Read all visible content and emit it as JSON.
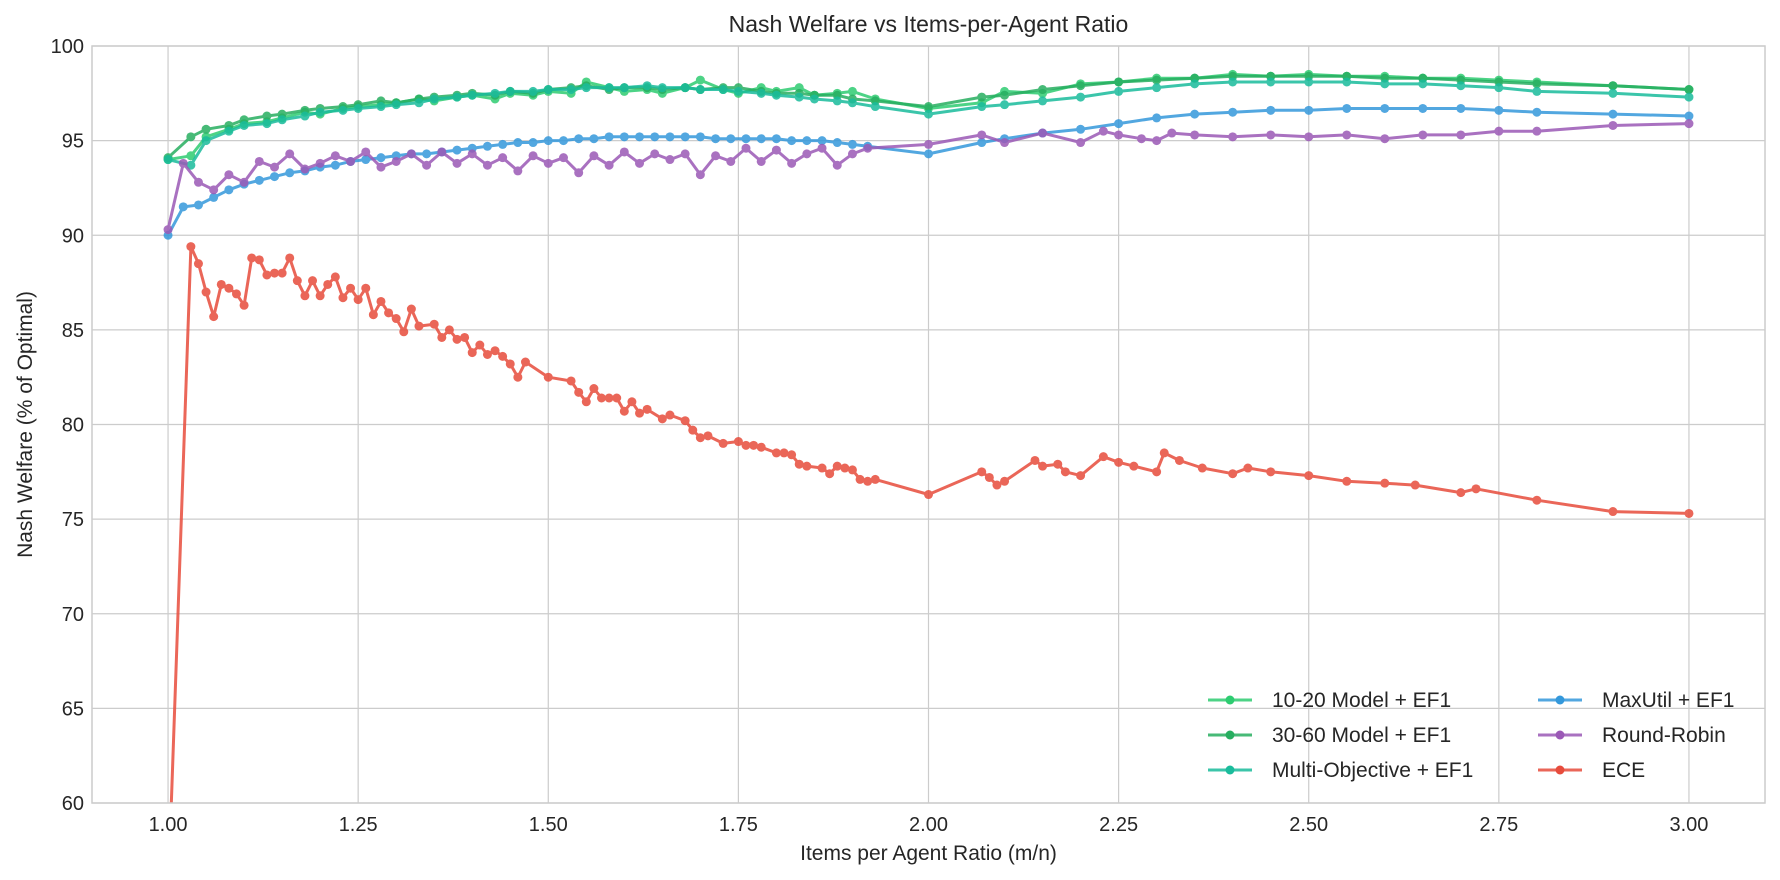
{
  "chart_data": {
    "type": "line",
    "title": "Nash Welfare vs Items-per-Agent Ratio",
    "xlabel": "Items per Agent Ratio (m/n)",
    "ylabel": "Nash Welfare (% of Optimal)",
    "xlim": [
      0.9,
      3.1
    ],
    "ylim": [
      60,
      100
    ],
    "xticks": [
      1.0,
      1.25,
      1.5,
      1.75,
      2.0,
      2.25,
      2.5,
      2.75,
      3.0
    ],
    "xtick_labels": [
      "1.00",
      "1.25",
      "1.50",
      "1.75",
      "2.00",
      "2.25",
      "2.50",
      "2.75",
      "3.00"
    ],
    "yticks": [
      60,
      65,
      70,
      75,
      80,
      85,
      90,
      95,
      100
    ],
    "ytick_labels": [
      "60",
      "65",
      "70",
      "75",
      "80",
      "85",
      "90",
      "95",
      "100"
    ],
    "grid": true,
    "legend_position": "lower-right",
    "series": [
      {
        "name": "10-20 Model + EF1",
        "color": "#2ecc71",
        "x": [
          1.0,
          1.03,
          1.05,
          1.08,
          1.1,
          1.13,
          1.15,
          1.18,
          1.2,
          1.23,
          1.25,
          1.28,
          1.3,
          1.33,
          1.35,
          1.38,
          1.4,
          1.43,
          1.45,
          1.48,
          1.5,
          1.53,
          1.55,
          1.58,
          1.6,
          1.63,
          1.65,
          1.68,
          1.7,
          1.73,
          1.75,
          1.78,
          1.8,
          1.83,
          1.85,
          1.88,
          1.9,
          1.93,
          2.0,
          2.07,
          2.1,
          2.15,
          2.2,
          2.25,
          2.3,
          2.35,
          2.4,
          2.45,
          2.5,
          2.55,
          2.6,
          2.65,
          2.7,
          2.75,
          2.8,
          2.9,
          3.0
        ],
        "y": [
          94.0,
          94.2,
          95.2,
          95.6,
          95.9,
          96.0,
          96.2,
          96.5,
          96.4,
          96.7,
          96.8,
          96.9,
          97.0,
          97.2,
          97.1,
          97.3,
          97.4,
          97.2,
          97.5,
          97.4,
          97.6,
          97.5,
          98.1,
          97.8,
          97.6,
          97.7,
          97.5,
          97.8,
          98.2,
          97.7,
          97.5,
          97.8,
          97.6,
          97.8,
          97.4,
          97.5,
          97.6,
          97.2,
          96.7,
          97.0,
          97.6,
          97.5,
          98.0,
          98.1,
          98.3,
          98.3,
          98.5,
          98.4,
          98.5,
          98.4,
          98.4,
          98.3,
          98.3,
          98.2,
          98.1,
          97.9,
          97.7
        ]
      },
      {
        "name": "30-60 Model + EF1",
        "color": "#27ae60",
        "x": [
          1.0,
          1.03,
          1.05,
          1.08,
          1.1,
          1.13,
          1.15,
          1.18,
          1.2,
          1.23,
          1.25,
          1.28,
          1.3,
          1.33,
          1.35,
          1.38,
          1.4,
          1.43,
          1.45,
          1.48,
          1.5,
          1.53,
          1.55,
          1.58,
          1.6,
          1.63,
          1.65,
          1.68,
          1.7,
          1.73,
          1.75,
          1.78,
          1.8,
          1.83,
          1.85,
          1.88,
          1.9,
          1.93,
          2.0,
          2.07,
          2.1,
          2.15,
          2.2,
          2.25,
          2.3,
          2.35,
          2.4,
          2.45,
          2.5,
          2.55,
          2.6,
          2.65,
          2.7,
          2.75,
          2.8,
          2.9,
          3.0
        ],
        "y": [
          94.1,
          95.2,
          95.6,
          95.8,
          96.1,
          96.3,
          96.4,
          96.6,
          96.7,
          96.8,
          96.9,
          97.1,
          97.0,
          97.2,
          97.3,
          97.4,
          97.5,
          97.4,
          97.6,
          97.5,
          97.7,
          97.8,
          97.9,
          97.7,
          97.8,
          97.8,
          97.7,
          97.8,
          97.7,
          97.8,
          97.8,
          97.6,
          97.5,
          97.5,
          97.4,
          97.4,
          97.2,
          97.1,
          96.8,
          97.3,
          97.4,
          97.7,
          97.9,
          98.1,
          98.2,
          98.3,
          98.4,
          98.4,
          98.4,
          98.4,
          98.3,
          98.3,
          98.2,
          98.1,
          98.0,
          97.9,
          97.7
        ]
      },
      {
        "name": "Multi-Objective + EF1",
        "color": "#1abc9c",
        "x": [
          1.0,
          1.03,
          1.05,
          1.08,
          1.1,
          1.13,
          1.15,
          1.18,
          1.2,
          1.23,
          1.25,
          1.28,
          1.3,
          1.33,
          1.35,
          1.38,
          1.4,
          1.43,
          1.45,
          1.48,
          1.5,
          1.53,
          1.55,
          1.58,
          1.6,
          1.63,
          1.65,
          1.68,
          1.7,
          1.73,
          1.75,
          1.78,
          1.8,
          1.83,
          1.85,
          1.88,
          1.9,
          1.93,
          2.0,
          2.07,
          2.1,
          2.15,
          2.2,
          2.25,
          2.3,
          2.35,
          2.4,
          2.45,
          2.5,
          2.55,
          2.6,
          2.65,
          2.7,
          2.75,
          2.8,
          2.9,
          3.0
        ],
        "y": [
          94.0,
          93.7,
          95.0,
          95.5,
          95.8,
          95.9,
          96.1,
          96.3,
          96.5,
          96.6,
          96.7,
          96.8,
          96.9,
          97.0,
          97.2,
          97.3,
          97.4,
          97.5,
          97.6,
          97.6,
          97.7,
          97.7,
          97.8,
          97.8,
          97.8,
          97.9,
          97.8,
          97.8,
          97.7,
          97.7,
          97.6,
          97.5,
          97.4,
          97.3,
          97.2,
          97.1,
          97.0,
          96.8,
          96.4,
          96.8,
          96.9,
          97.1,
          97.3,
          97.6,
          97.8,
          98.0,
          98.1,
          98.1,
          98.1,
          98.1,
          98.0,
          98.0,
          97.9,
          97.8,
          97.6,
          97.5,
          97.3
        ]
      },
      {
        "name": "MaxUtil + EF1",
        "color": "#3498db",
        "x": [
          1.0,
          1.02,
          1.04,
          1.06,
          1.08,
          1.1,
          1.12,
          1.14,
          1.16,
          1.18,
          1.2,
          1.22,
          1.24,
          1.26,
          1.28,
          1.3,
          1.32,
          1.34,
          1.36,
          1.38,
          1.4,
          1.42,
          1.44,
          1.46,
          1.48,
          1.5,
          1.52,
          1.54,
          1.56,
          1.58,
          1.6,
          1.62,
          1.64,
          1.66,
          1.68,
          1.7,
          1.72,
          1.74,
          1.76,
          1.78,
          1.8,
          1.82,
          1.84,
          1.86,
          1.88,
          1.9,
          1.92,
          2.0,
          2.07,
          2.1,
          2.15,
          2.2,
          2.25,
          2.3,
          2.35,
          2.4,
          2.45,
          2.5,
          2.55,
          2.6,
          2.65,
          2.7,
          2.75,
          2.8,
          2.9,
          3.0
        ],
        "y": [
          90.0,
          91.5,
          91.6,
          92.0,
          92.4,
          92.7,
          92.9,
          93.1,
          93.3,
          93.4,
          93.6,
          93.7,
          93.9,
          94.0,
          94.1,
          94.2,
          94.3,
          94.3,
          94.4,
          94.5,
          94.6,
          94.7,
          94.8,
          94.9,
          94.9,
          95.0,
          95.0,
          95.1,
          95.1,
          95.2,
          95.2,
          95.2,
          95.2,
          95.2,
          95.2,
          95.2,
          95.1,
          95.1,
          95.1,
          95.1,
          95.1,
          95.0,
          95.0,
          95.0,
          94.9,
          94.8,
          94.7,
          94.3,
          94.9,
          95.1,
          95.4,
          95.6,
          95.9,
          96.2,
          96.4,
          96.5,
          96.6,
          96.6,
          96.7,
          96.7,
          96.7,
          96.7,
          96.6,
          96.5,
          96.4,
          96.3
        ]
      },
      {
        "name": "Round-Robin",
        "color": "#9b59b6",
        "x": [
          1.0,
          1.02,
          1.04,
          1.06,
          1.08,
          1.1,
          1.12,
          1.14,
          1.16,
          1.18,
          1.2,
          1.22,
          1.24,
          1.26,
          1.28,
          1.3,
          1.32,
          1.34,
          1.36,
          1.38,
          1.4,
          1.42,
          1.44,
          1.46,
          1.48,
          1.5,
          1.52,
          1.54,
          1.56,
          1.58,
          1.6,
          1.62,
          1.64,
          1.66,
          1.68,
          1.7,
          1.72,
          1.74,
          1.76,
          1.78,
          1.8,
          1.82,
          1.84,
          1.86,
          1.88,
          1.9,
          1.92,
          2.0,
          2.07,
          2.1,
          2.15,
          2.2,
          2.23,
          2.25,
          2.28,
          2.3,
          2.32,
          2.35,
          2.4,
          2.45,
          2.5,
          2.55,
          2.6,
          2.65,
          2.7,
          2.75,
          2.8,
          2.9,
          3.0
        ],
        "y": [
          90.3,
          93.8,
          92.8,
          92.4,
          93.2,
          92.8,
          93.9,
          93.6,
          94.3,
          93.5,
          93.8,
          94.2,
          93.9,
          94.4,
          93.6,
          93.9,
          94.3,
          93.7,
          94.4,
          93.8,
          94.3,
          93.7,
          94.1,
          93.4,
          94.2,
          93.8,
          94.1,
          93.3,
          94.2,
          93.7,
          94.4,
          93.8,
          94.3,
          94.0,
          94.3,
          93.2,
          94.2,
          93.9,
          94.6,
          93.9,
          94.5,
          93.8,
          94.3,
          94.6,
          93.7,
          94.3,
          94.6,
          94.8,
          95.3,
          94.9,
          95.4,
          94.9,
          95.5,
          95.3,
          95.1,
          95.0,
          95.4,
          95.3,
          95.2,
          95.3,
          95.2,
          95.3,
          95.1,
          95.3,
          95.3,
          95.5,
          95.5,
          95.8,
          95.9
        ]
      },
      {
        "name": "ECE",
        "color": "#e74c3c",
        "x": [
          1.0,
          1.03,
          1.04,
          1.05,
          1.06,
          1.07,
          1.08,
          1.09,
          1.1,
          1.11,
          1.12,
          1.13,
          1.14,
          1.15,
          1.16,
          1.17,
          1.18,
          1.19,
          1.2,
          1.21,
          1.22,
          1.23,
          1.24,
          1.25,
          1.26,
          1.27,
          1.28,
          1.29,
          1.3,
          1.31,
          1.32,
          1.33,
          1.35,
          1.36,
          1.37,
          1.38,
          1.39,
          1.4,
          1.41,
          1.42,
          1.43,
          1.44,
          1.45,
          1.46,
          1.47,
          1.5,
          1.53,
          1.54,
          1.55,
          1.56,
          1.57,
          1.58,
          1.59,
          1.6,
          1.61,
          1.62,
          1.63,
          1.65,
          1.66,
          1.68,
          1.69,
          1.7,
          1.71,
          1.73,
          1.75,
          1.76,
          1.77,
          1.78,
          1.8,
          1.81,
          1.82,
          1.83,
          1.84,
          1.86,
          1.87,
          1.88,
          1.89,
          1.9,
          1.91,
          1.92,
          1.93,
          2.0,
          2.07,
          2.08,
          2.09,
          2.1,
          2.14,
          2.15,
          2.17,
          2.18,
          2.2,
          2.23,
          2.25,
          2.27,
          2.3,
          2.31,
          2.33,
          2.36,
          2.4,
          2.42,
          2.45,
          2.5,
          2.55,
          2.6,
          2.64,
          2.7,
          2.72,
          2.8,
          2.9,
          3.0
        ],
        "y": [
          55.0,
          89.4,
          88.5,
          87.0,
          85.7,
          87.4,
          87.2,
          86.9,
          86.3,
          88.8,
          88.7,
          87.9,
          88.0,
          88.0,
          88.8,
          87.6,
          86.8,
          87.6,
          86.8,
          87.4,
          87.8,
          86.7,
          87.2,
          86.6,
          87.2,
          85.8,
          86.5,
          85.9,
          85.6,
          84.9,
          86.1,
          85.2,
          85.3,
          84.6,
          85.0,
          84.5,
          84.6,
          83.8,
          84.2,
          83.7,
          83.9,
          83.6,
          83.2,
          82.5,
          83.3,
          82.5,
          82.3,
          81.7,
          81.2,
          81.9,
          81.4,
          81.4,
          81.4,
          80.7,
          81.2,
          80.6,
          80.8,
          80.3,
          80.5,
          80.2,
          79.7,
          79.3,
          79.4,
          79.0,
          79.1,
          78.9,
          78.9,
          78.8,
          78.5,
          78.5,
          78.4,
          77.9,
          77.8,
          77.7,
          77.4,
          77.8,
          77.7,
          77.6,
          77.1,
          77.0,
          77.1,
          76.3,
          77.5,
          77.2,
          76.8,
          77.0,
          78.1,
          77.8,
          77.9,
          77.5,
          77.3,
          78.3,
          78.0,
          77.8,
          77.5,
          78.5,
          78.1,
          77.7,
          77.4,
          77.7,
          77.5,
          77.3,
          77.0,
          76.9,
          76.8,
          76.4,
          76.6,
          76.0,
          75.4,
          75.3
        ]
      }
    ]
  }
}
